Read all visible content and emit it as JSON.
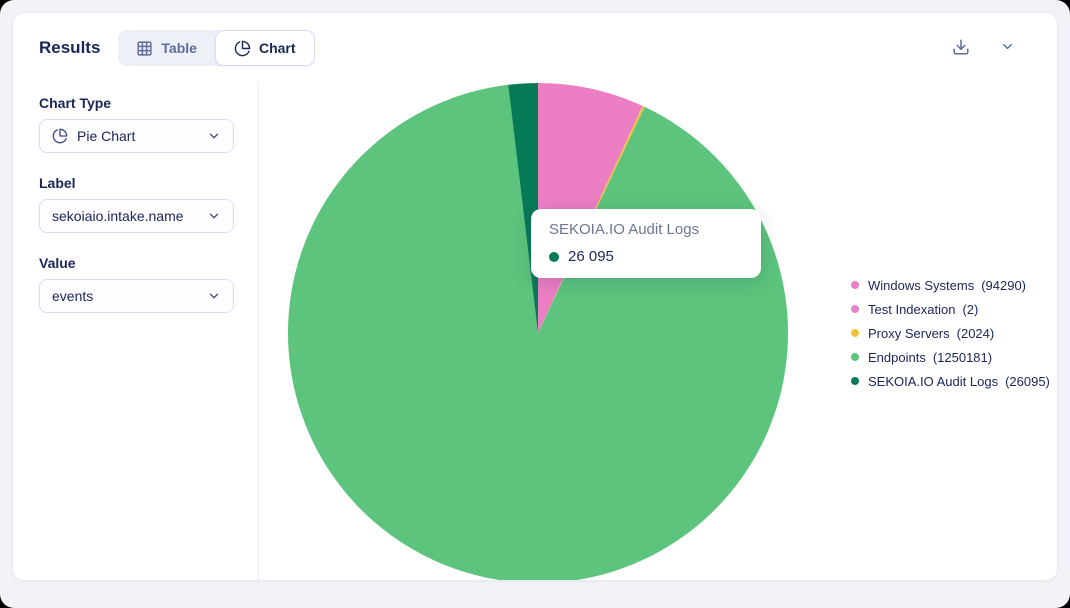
{
  "colors": {
    "text_primary": "#1b2559",
    "text_muted": "#5f6b9a",
    "card_border": "#e9ebf3",
    "page_background": "#f2f3f8"
  },
  "header": {
    "title": "Results",
    "view_toggle": {
      "table_label": "Table",
      "chart_label": "Chart",
      "active": "chart"
    },
    "icons": {
      "download": "download-tray",
      "collapse": "chevron-down"
    }
  },
  "sidebar": {
    "chart_type": {
      "label": "Chart Type",
      "value": "Pie Chart",
      "icon": "pie-chart"
    },
    "label_field": {
      "label": "Label",
      "value": "sekoiaio.intake.name"
    },
    "value_field": {
      "label": "Value",
      "value": "events"
    }
  },
  "tooltip": {
    "title": "SEKOIA.IO Audit Logs",
    "value": "26 095",
    "dot_color": "#067a57"
  },
  "chart_data": {
    "type": "pie",
    "title": "",
    "legend_position": "right",
    "start_angle_deg": 0,
    "direction": "clockwise",
    "series": [
      {
        "name": "Windows Systems",
        "value": 94290,
        "color": "#ec7ec4"
      },
      {
        "name": "Test Indexation",
        "value": 2,
        "color": "#e882cb"
      },
      {
        "name": "Proxy Servers",
        "value": 2024,
        "color": "#f2c23e"
      },
      {
        "name": "Endpoints",
        "value": 1250181,
        "color": "#5cc47c"
      },
      {
        "name": "SEKOIA.IO Audit Logs",
        "value": 26095,
        "color": "#067a57"
      }
    ]
  }
}
